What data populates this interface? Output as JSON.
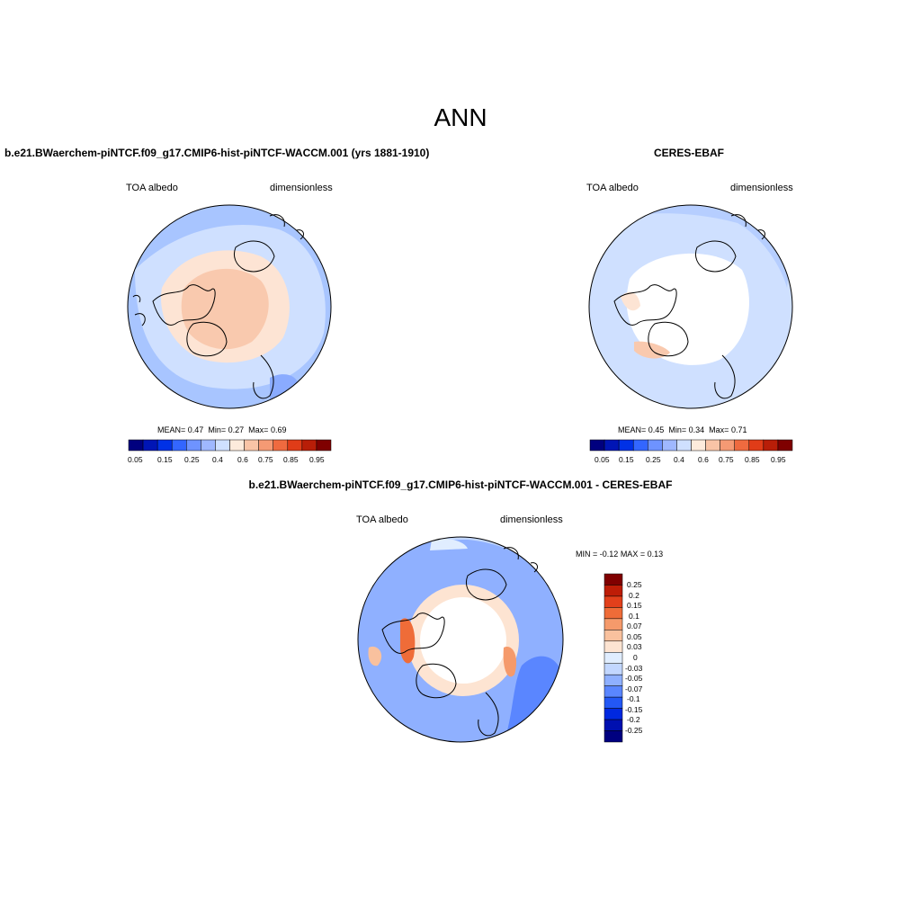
{
  "page": {
    "title": "ANN"
  },
  "colors": {
    "bar12": [
      "#00007f",
      "#0015b5",
      "#0031e6",
      "#3366ff",
      "#6e93ff",
      "#9fb8ff",
      "#cfe0ff",
      "#fdebdc",
      "#f9c4a6",
      "#f59a74",
      "#ef6a3f",
      "#e03c18",
      "#b81e08",
      "#7f0000"
    ],
    "diff": [
      "#000080",
      "#0010b0",
      "#0028e0",
      "#2358f5",
      "#5a86ff",
      "#8fb0ff",
      "#c2d7ff",
      "#e0edff",
      "#fde4d2",
      "#f9c19e",
      "#f59a6b",
      "#ef6c38",
      "#e2401b",
      "#be1d07",
      "#800000"
    ]
  },
  "panels": {
    "model": {
      "header": "b.e21.BWaerchem-piNTCF.f09_g17.CMIP6-hist-piNTCF-WACCM.001 (yrs 1881-1910)",
      "variable": "TOA albedo",
      "units": "dimensionless",
      "mean_label": "MEAN=",
      "mean": "0.47",
      "min_label": "Min=",
      "min": "0.27",
      "max_label": "Max=",
      "max": "0.69"
    },
    "obs": {
      "header": "CERES-EBAF",
      "variable": "TOA albedo",
      "units": "dimensionless",
      "mean_label": "MEAN=",
      "mean": "0.45",
      "min_label": "Min=",
      "min": "0.34",
      "max_label": "Max=",
      "max": "0.71"
    },
    "diff": {
      "header": "b.e21.BWaerchem-piNTCF.f09_g17.CMIP6-hist-piNTCF-WACCM.001 - CERES-EBAF",
      "variable": "TOA albedo",
      "units": "dimensionless",
      "min_label": "MIN =",
      "min": "-0.12",
      "max_label": "MAX =",
      "max": "0.13"
    }
  },
  "colorbar": {
    "tick_labels": [
      "0.05",
      "0.15",
      "0.25",
      "0.4",
      "0.6",
      "0.75",
      "0.85",
      "0.95"
    ]
  },
  "diff_colorbar": {
    "tick_labels": [
      "0.25",
      "0.2",
      "0.15",
      "0.1",
      "0.07",
      "0.05",
      "0.03",
      "0",
      "-0.03",
      "-0.05",
      "-0.07",
      "-0.1",
      "-0.15",
      "-0.2",
      "-0.25"
    ]
  }
}
